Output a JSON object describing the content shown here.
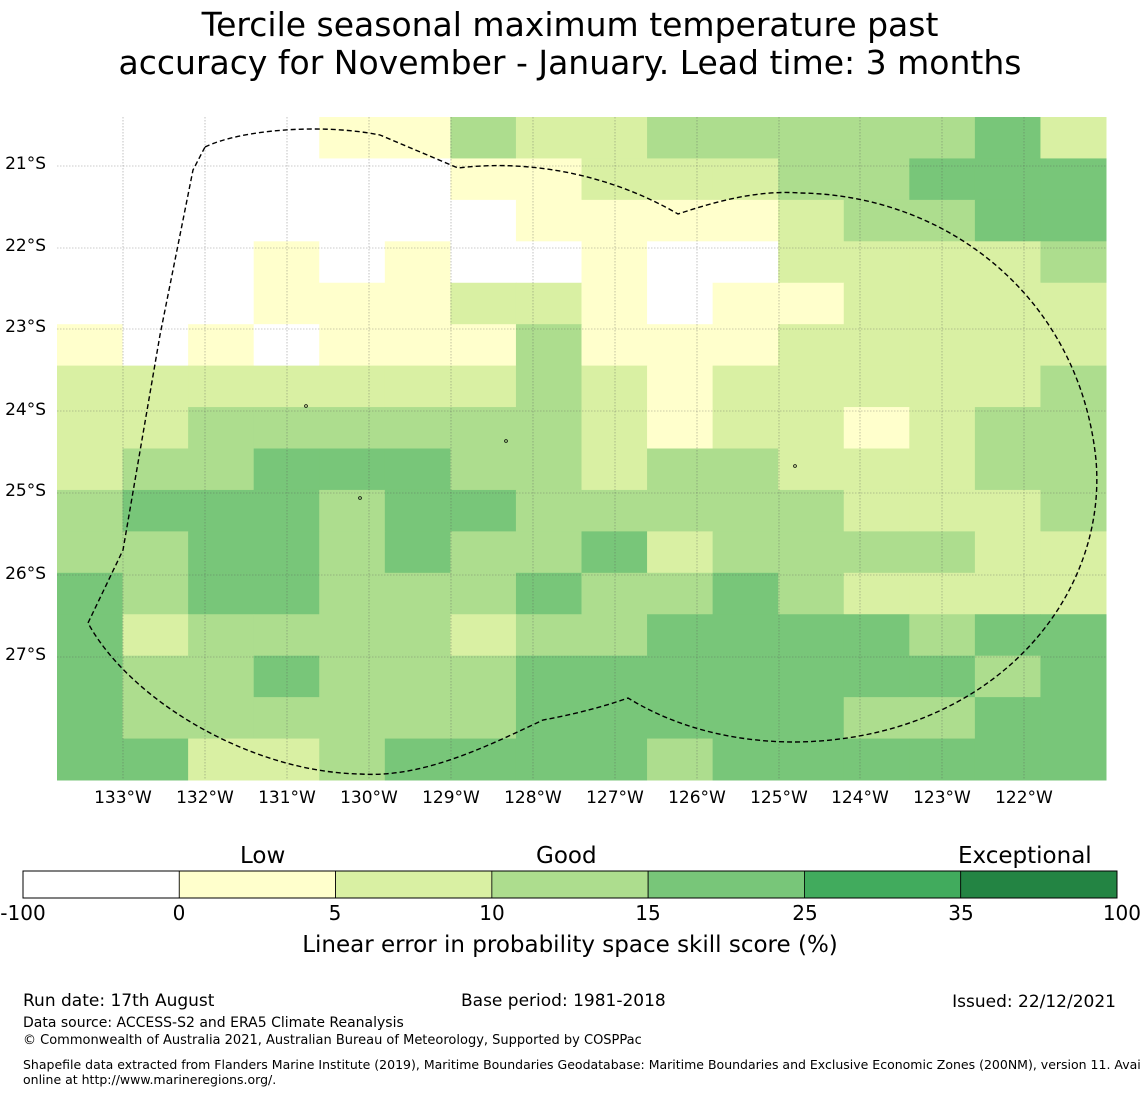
{
  "title_line1": "Tercile seasonal maximum temperature past",
  "title_line2": "accuracy for November - January. Lead time: 3 months",
  "lat_labels": [
    "21°S",
    "22°S",
    "23°S",
    "24°S",
    "25°S",
    "26°S",
    "27°S"
  ],
  "lon_labels": [
    "133°W",
    "132°W",
    "131°W",
    "130°W",
    "129°W",
    "128°W",
    "127°W",
    "126°W",
    "125°W",
    "124°W",
    "123°W",
    "122°W"
  ],
  "legend": {
    "categories": [
      "Low",
      "Good",
      "Exceptional"
    ],
    "ticks": [
      "-100",
      "0",
      "5",
      "10",
      "15",
      "25",
      "35",
      "100"
    ],
    "colors": [
      "#ffffff",
      "#ffffcc",
      "#d9f0a3",
      "#addd8e",
      "#78c679",
      "#41ab5d",
      "#238443"
    ],
    "title": "Linear error in probability space skill score (%)"
  },
  "footer": {
    "run_date": "Run date: 17th August",
    "base_period": "Base period: 1981-2018",
    "issued": "Issued: 22/12/2021",
    "data_source": "Data source: ACCESS-S2 and ERA5 Climate Reanalysis",
    "copyright": "© Commonwealth of Australia 2021, Australian Bureau of Meteorology, Supported by COSPPac",
    "shapefile_line1": "Shapefile data extracted from Flanders Marine Institute (2019), Maritime Boundaries Geodatabase: Maritime Boundaries and Exclusive Economic Zones (200NM), version 11. Available",
    "shapefile_line2": "online at http://www.marineregions.org/."
  },
  "grid": {
    "rows": [
      "0011133333",
      "0000013322",
      "1010000004",
      "0"
    ]
  },
  "chart_data": {
    "type": "heatmap",
    "value_legend": "category index: 0 = -100..0, 1 = 0..5, 2 = 5..10, 3 = 10..15, 4 = 15..25",
    "cells": [
      [
        0,
        0,
        0,
        0,
        1,
        1,
        3,
        2,
        2,
        3,
        3,
        3,
        3,
        3,
        4
      ],
      [
        0,
        0,
        0,
        0,
        0,
        0,
        1,
        1,
        2,
        2,
        2,
        3,
        3,
        4,
        4,
        4
      ],
      [
        0,
        0,
        0,
        0,
        0,
        0,
        0,
        1,
        1,
        1,
        1,
        2,
        3,
        3,
        4,
        4,
        4
      ],
      [
        0,
        0,
        0,
        1,
        0,
        1,
        0,
        0,
        1,
        0,
        0,
        2,
        2,
        2,
        2,
        3
      ],
      [
        0,
        0,
        0,
        1,
        1,
        1,
        2,
        2,
        1,
        0,
        1,
        1,
        2,
        2,
        2,
        2
      ],
      [
        1,
        0,
        1,
        0,
        1,
        1,
        1,
        3,
        1,
        1,
        1,
        2,
        2,
        2,
        2,
        2
      ],
      [
        2,
        2,
        2,
        2,
        2,
        2,
        2,
        3,
        2,
        1,
        2,
        2,
        2,
        2,
        2,
        3
      ],
      [
        2,
        2,
        3,
        3,
        3,
        3,
        3,
        3,
        2,
        1,
        2,
        2,
        1,
        2,
        3,
        3
      ],
      [
        2,
        3,
        3,
        4,
        4,
        4,
        3,
        3,
        2,
        3,
        3,
        2,
        2,
        2,
        3,
        3
      ],
      [
        3,
        4,
        4,
        4,
        3,
        4,
        4,
        3,
        3,
        3,
        3,
        3,
        2,
        2,
        2,
        3
      ],
      [
        3,
        3,
        4,
        4,
        3,
        4,
        3,
        3,
        4,
        2,
        3,
        3,
        3,
        3,
        2,
        2
      ],
      [
        4,
        3,
        4,
        4,
        3,
        3,
        3,
        4,
        3,
        3,
        4,
        3,
        2,
        2,
        2,
        2
      ],
      [
        4,
        2,
        3,
        3,
        3,
        3,
        2,
        3,
        3,
        4,
        4,
        4,
        4,
        3,
        4,
        4
      ],
      [
        4,
        3,
        3,
        4,
        3,
        3,
        3,
        4,
        4,
        4,
        4,
        4,
        4,
        4,
        3,
        4
      ],
      [
        4,
        3,
        3,
        3,
        3,
        3,
        3,
        4,
        4,
        4,
        4,
        4,
        3,
        3,
        4,
        4
      ],
      [
        4,
        4,
        2,
        2,
        3,
        4,
        4,
        4,
        4,
        3,
        4,
        4,
        4,
        4,
        4,
        4
      ]
    ]
  }
}
